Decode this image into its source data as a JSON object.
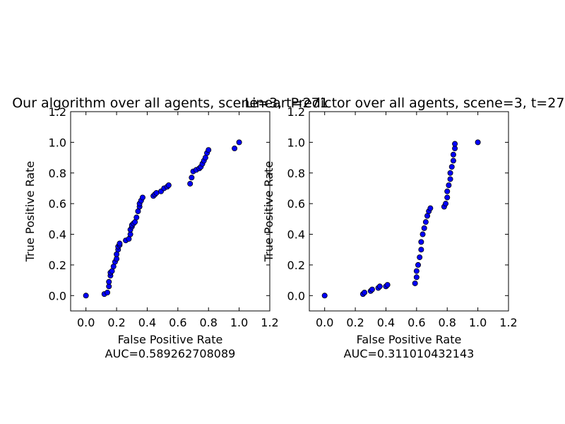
{
  "chart_data": [
    {
      "type": "scatter",
      "title": "Our algorithm over all agents, scene=3,  t=271",
      "xlabel": "False Positive Rate",
      "xlabel_sub": "AUC=0.589262708089",
      "ylabel": "True Positive Rate",
      "xlim": [
        -0.1,
        1.2
      ],
      "ylim": [
        -0.1,
        1.2
      ],
      "xticks": [
        "0.0",
        "0.2",
        "0.4",
        "0.6",
        "0.8",
        "1.0",
        "1.2"
      ],
      "yticks": [
        "0.0",
        "0.2",
        "0.4",
        "0.6",
        "0.8",
        "1.0",
        "1.2"
      ],
      "marker_color": "#0000ff",
      "grid": false,
      "x": [
        0.0,
        0.12,
        0.14,
        0.15,
        0.15,
        0.16,
        0.16,
        0.17,
        0.18,
        0.19,
        0.2,
        0.2,
        0.21,
        0.21,
        0.22,
        0.22,
        0.26,
        0.28,
        0.29,
        0.29,
        0.3,
        0.3,
        0.31,
        0.32,
        0.33,
        0.34,
        0.35,
        0.35,
        0.36,
        0.37,
        0.44,
        0.45,
        0.46,
        0.49,
        0.51,
        0.53,
        0.54,
        0.68,
        0.69,
        0.7,
        0.72,
        0.74,
        0.75,
        0.76,
        0.77,
        0.78,
        0.79,
        0.8,
        0.97,
        1.0
      ],
      "y": [
        0.0,
        0.01,
        0.02,
        0.06,
        0.09,
        0.13,
        0.15,
        0.16,
        0.19,
        0.22,
        0.24,
        0.27,
        0.3,
        0.32,
        0.33,
        0.34,
        0.36,
        0.37,
        0.4,
        0.43,
        0.45,
        0.46,
        0.47,
        0.48,
        0.51,
        0.55,
        0.58,
        0.6,
        0.62,
        0.64,
        0.65,
        0.66,
        0.67,
        0.68,
        0.7,
        0.71,
        0.72,
        0.73,
        0.77,
        0.81,
        0.82,
        0.83,
        0.84,
        0.86,
        0.88,
        0.9,
        0.93,
        0.95,
        0.96,
        1.0
      ]
    },
    {
      "type": "scatter",
      "title": "Linear Predictor over all agents, scene=3,  t=271",
      "xlabel": "False Positive Rate",
      "xlabel_sub": "AUC=0.311010432143",
      "ylabel": "True Positive Rate",
      "xlim": [
        -0.1,
        1.2
      ],
      "ylim": [
        -0.1,
        1.2
      ],
      "xticks": [
        "0.0",
        "0.2",
        "0.4",
        "0.6",
        "0.8",
        "1.0",
        "1.2"
      ],
      "yticks": [
        "0.0",
        "0.2",
        "0.4",
        "0.6",
        "0.8",
        "1.0",
        "1.2"
      ],
      "marker_color": "#0000ff",
      "grid": false,
      "x": [
        0.0,
        0.25,
        0.26,
        0.3,
        0.31,
        0.35,
        0.36,
        0.4,
        0.41,
        0.59,
        0.6,
        0.6,
        0.61,
        0.62,
        0.63,
        0.63,
        0.64,
        0.65,
        0.66,
        0.67,
        0.68,
        0.69,
        0.78,
        0.79,
        0.8,
        0.8,
        0.81,
        0.82,
        0.82,
        0.83,
        0.84,
        0.84,
        0.85,
        0.85,
        1.0
      ],
      "y": [
        0.0,
        0.01,
        0.02,
        0.03,
        0.04,
        0.05,
        0.06,
        0.06,
        0.07,
        0.08,
        0.12,
        0.16,
        0.2,
        0.25,
        0.3,
        0.35,
        0.4,
        0.44,
        0.48,
        0.52,
        0.55,
        0.57,
        0.58,
        0.6,
        0.64,
        0.68,
        0.72,
        0.76,
        0.8,
        0.84,
        0.88,
        0.92,
        0.96,
        0.99,
        1.0
      ]
    }
  ]
}
